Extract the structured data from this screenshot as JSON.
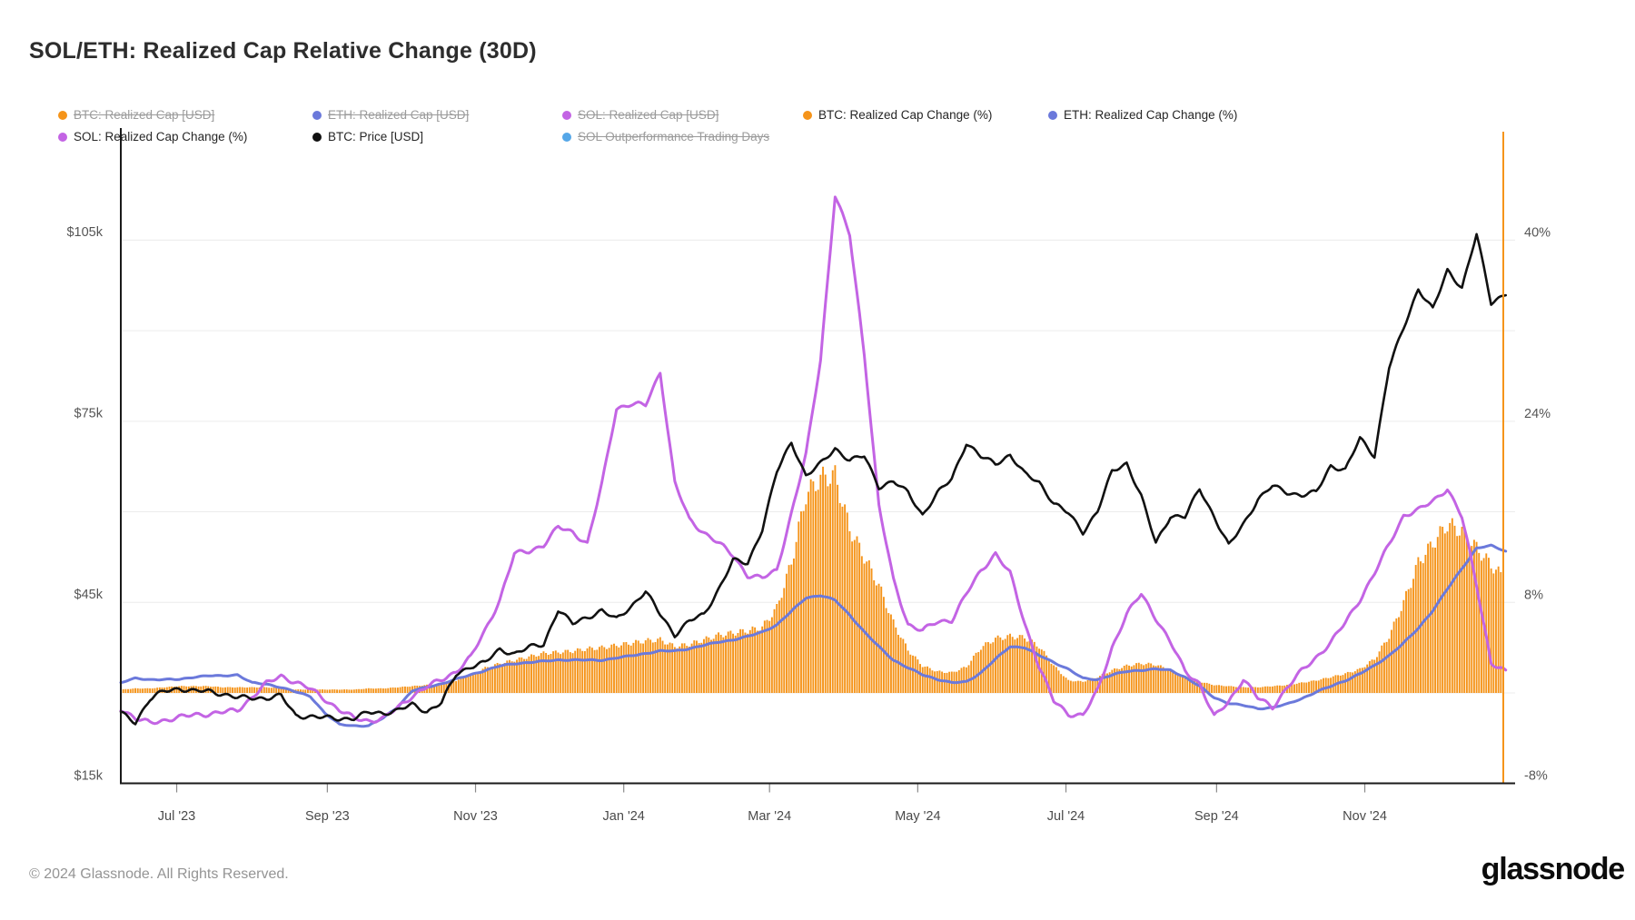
{
  "header": {
    "title": "SOL/ETH: Realized Cap Relative Change (30D)"
  },
  "legend": {
    "items": [
      {
        "label": "BTC: Realized Cap [USD]",
        "color": "#F5941A",
        "disabled": true
      },
      {
        "label": "ETH: Realized Cap [USD]",
        "color": "#6B79DB",
        "disabled": true
      },
      {
        "label": "SOL: Realized Cap [USD]",
        "color": "#C364E4",
        "disabled": true
      },
      {
        "label": "BTC: Realized Cap Change (%)",
        "color": "#F5941A",
        "disabled": false
      },
      {
        "label": "ETH: Realized Cap Change (%)",
        "color": "#6B79DB",
        "disabled": false
      },
      {
        "label": "SOL: Realized Cap Change (%)",
        "color": "#C364E4",
        "disabled": false
      },
      {
        "label": "BTC: Price [USD]",
        "color": "#111111",
        "disabled": false
      },
      {
        "label": "SOL Outperformance Trading Days",
        "color": "#55A7E8",
        "disabled": true
      }
    ]
  },
  "footer": {
    "copyright": "© 2024 Glassnode. All Rights Reserved.",
    "brand": "glassnode"
  },
  "chart_data": {
    "type": "mixed",
    "title": "SOL/ETH: Realized Cap Relative Change (30D)",
    "x_domain": {
      "start_label": "Jun 8 '23",
      "end_label": "Dec 28 '24",
      "total_days": 569
    },
    "sample_interval_days": 6,
    "x_ticks": [
      {
        "day": 23,
        "label": "Jul '23"
      },
      {
        "day": 85,
        "label": "Sep '23"
      },
      {
        "day": 146,
        "label": "Nov '23"
      },
      {
        "day": 207,
        "label": "Jan '24"
      },
      {
        "day": 267,
        "label": "Mar '24"
      },
      {
        "day": 328,
        "label": "May '24"
      },
      {
        "day": 389,
        "label": "Jul '24"
      },
      {
        "day": 451,
        "label": "Sep '24"
      },
      {
        "day": 512,
        "label": "Nov '24"
      }
    ],
    "left_axis": {
      "unit": "USD",
      "ticks": [
        {
          "value": 105,
          "label": "$105k"
        },
        {
          "value": 75,
          "label": "$75k"
        },
        {
          "value": 45,
          "label": "$45k"
        },
        {
          "value": 15,
          "label": "$15k"
        }
      ]
    },
    "right_axis": {
      "unit": "%",
      "ticks": [
        {
          "value": 40,
          "label": "40%"
        },
        {
          "value": 24,
          "label": "24%"
        },
        {
          "value": 8,
          "label": "8%"
        },
        {
          "value": -8,
          "label": "-8%"
        }
      ]
    },
    "gridline_values_pct": [
      40,
      32,
      24,
      16,
      8,
      0,
      -8
    ],
    "series": [
      {
        "name": "BTC: Realized Cap Change (%)",
        "type": "bar",
        "axis": "percent",
        "color": "#F5941A",
        "values": [
          0.3,
          0.4,
          0.4,
          0.5,
          0.6,
          0.6,
          0.6,
          0.5,
          0.5,
          0.5,
          0.5,
          0.4,
          0.3,
          0.3,
          0.3,
          0.3,
          0.3,
          0.4,
          0.4,
          0.5,
          0.6,
          0.7,
          0.8,
          1.1,
          1.6,
          2.2,
          2.6,
          2.9,
          3.2,
          3.5,
          3.6,
          3.7,
          3.9,
          4.0,
          4.2,
          4.4,
          4.6,
          4.7,
          4.1,
          4.3,
          4.7,
          5.1,
          5.3,
          5.5,
          5.8,
          7.5,
          11.5,
          17.5,
          19.0,
          19.2,
          14.5,
          12.0,
          9.5,
          6.2,
          3.8,
          2.4,
          1.9,
          1.8,
          2.3,
          4.0,
          4.8,
          5.0,
          4.9,
          4.1,
          2.4,
          1.1,
          1.0,
          1.4,
          2.0,
          2.4,
          2.6,
          2.5,
          2.0,
          1.4,
          1.0,
          0.7,
          0.6,
          0.5,
          0.5,
          0.6,
          0.7,
          0.9,
          1.1,
          1.4,
          1.7,
          2.1,
          3.0,
          5.0,
          8.0,
          11.5,
          13.2,
          14.9,
          14.3,
          12.8,
          11.3,
          10.0
        ]
      },
      {
        "name": "ETH: Realized Cap Change (%)",
        "type": "line",
        "axis": "percent",
        "color": "#6B79DB",
        "values": [
          0.9,
          1.3,
          1.2,
          1.2,
          1.2,
          1.4,
          1.5,
          1.5,
          1.6,
          0.9,
          0.8,
          0.5,
          0.1,
          -0.3,
          -1.8,
          -2.8,
          -2.9,
          -2.9,
          -2.2,
          -1.2,
          0.2,
          0.5,
          0.8,
          1.2,
          1.6,
          2.0,
          2.4,
          2.6,
          2.7,
          2.8,
          2.9,
          2.9,
          2.9,
          2.9,
          3.1,
          3.3,
          3.5,
          3.7,
          3.7,
          3.9,
          4.2,
          4.5,
          4.7,
          5.0,
          5.4,
          6.0,
          7.2,
          8.4,
          8.6,
          8.2,
          6.9,
          5.4,
          4.1,
          2.9,
          2.2,
          1.6,
          1.2,
          0.9,
          1.0,
          1.8,
          3.0,
          4.1,
          4.0,
          3.3,
          2.7,
          2.1,
          1.3,
          1.2,
          1.6,
          1.9,
          2.0,
          2.1,
          2.0,
          1.4,
          0.6,
          -0.4,
          -0.9,
          -1.1,
          -1.4,
          -1.3,
          -1.0,
          -0.5,
          0.1,
          0.6,
          1.1,
          1.7,
          2.4,
          3.3,
          4.4,
          5.7,
          7.3,
          9.2,
          11.0,
          12.8,
          13.0,
          12.5
        ]
      },
      {
        "name": "SOL: Realized Cap Change (%)",
        "type": "line",
        "axis": "percent",
        "color": "#C364E4",
        "values": [
          -1.3,
          -2.2,
          -2.6,
          -2.4,
          -2.2,
          -2.0,
          -1.9,
          -1.7,
          -1.5,
          -0.3,
          0.9,
          1.5,
          0.9,
          0.3,
          -0.6,
          -1.5,
          -2.2,
          -2.4,
          -2.2,
          -1.3,
          -0.3,
          0.5,
          1.1,
          1.9,
          3.2,
          5.6,
          8.3,
          12.3,
          12.5,
          13.0,
          14.6,
          14.2,
          13.2,
          18.5,
          25.2,
          25.5,
          25.4,
          28.3,
          18.5,
          15.3,
          14.2,
          13.3,
          12.2,
          10.4,
          10.1,
          10.8,
          15.8,
          21.0,
          29.5,
          44.0,
          40.5,
          30.0,
          16.5,
          9.9,
          6.0,
          5.5,
          6.3,
          6.5,
          8.8,
          10.8,
          12.3,
          10.5,
          6.1,
          2.3,
          -0.7,
          -1.8,
          -1.9,
          0.2,
          4.0,
          6.9,
          8.7,
          6.6,
          4.5,
          2.0,
          0.9,
          -2.1,
          -0.8,
          1.2,
          -0.5,
          -1.3,
          0.5,
          2.0,
          3.2,
          4.5,
          6.2,
          8.2,
          10.5,
          13.1,
          15.7,
          16.2,
          17.0,
          18.1,
          15.5,
          9.5,
          2.6,
          1.8
        ]
      },
      {
        "name": "BTC: Price [USD]",
        "type": "line",
        "axis": "price_kusd",
        "color": "#111111",
        "values": [
          26.8,
          25.2,
          28.9,
          30.2,
          30.6,
          30.2,
          30.3,
          29.9,
          29.3,
          29.2,
          29.1,
          29.4,
          26.1,
          26.0,
          25.9,
          25.8,
          25.9,
          26.8,
          26.6,
          27.0,
          27.9,
          26.8,
          28.4,
          33.1,
          34.5,
          35.1,
          37.1,
          36.4,
          37.4,
          37.9,
          43.8,
          41.5,
          42.6,
          43.7,
          42.1,
          44.2,
          46.7,
          42.9,
          39.6,
          42.0,
          43.0,
          47.2,
          51.9,
          51.3,
          57.0,
          66.5,
          71.5,
          66.0,
          68.0,
          70.5,
          68.5,
          69.1,
          64.0,
          64.9,
          63.1,
          59.5,
          63.1,
          65.5,
          71.4,
          69.0,
          67.8,
          69.3,
          66.2,
          64.9,
          61.5,
          59.8,
          56.6,
          60.0,
          66.5,
          67.9,
          62.5,
          54.8,
          59.4,
          59.2,
          63.8,
          59.1,
          54.2,
          57.8,
          62.0,
          64.3,
          63.3,
          62.8,
          63.2,
          67.5,
          66.8,
          72.0,
          69.2,
          84.0,
          90.5,
          97.0,
          93.5,
          99.8,
          97.0,
          105.8,
          94.5,
          96.2
        ]
      }
    ],
    "cursor_line": {
      "position": "right-edge",
      "color": "#F5941A"
    },
    "legend_position": "top",
    "grid": true
  }
}
